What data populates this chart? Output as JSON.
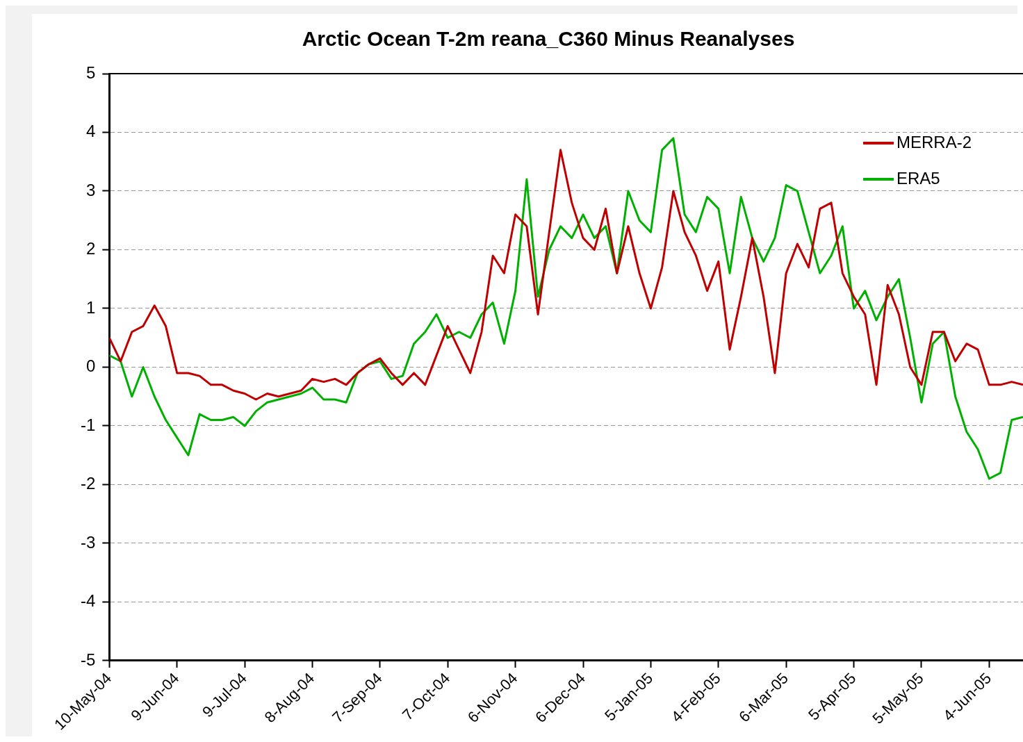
{
  "chart_data": {
    "type": "line",
    "title": "Arctic Ocean T-2m reana_C360 Minus Reanalyses",
    "x": [
      "2004-05-10",
      "2004-05-15",
      "2004-05-20",
      "2004-05-25",
      "2004-05-30",
      "2004-06-04",
      "2004-06-09",
      "2004-06-14",
      "2004-06-19",
      "2004-06-24",
      "2004-06-29",
      "2004-07-04",
      "2004-07-09",
      "2004-07-14",
      "2004-07-19",
      "2004-07-24",
      "2004-07-29",
      "2004-08-03",
      "2004-08-08",
      "2004-08-13",
      "2004-08-18",
      "2004-08-23",
      "2004-08-28",
      "2004-09-02",
      "2004-09-07",
      "2004-09-12",
      "2004-09-17",
      "2004-09-22",
      "2004-09-27",
      "2004-10-02",
      "2004-10-07",
      "2004-10-12",
      "2004-10-17",
      "2004-10-22",
      "2004-10-27",
      "2004-11-01",
      "2004-11-06",
      "2004-11-11",
      "2004-11-16",
      "2004-11-21",
      "2004-11-26",
      "2004-12-01",
      "2004-12-06",
      "2004-12-11",
      "2004-12-16",
      "2004-12-21",
      "2004-12-26",
      "2004-12-31",
      "2005-01-05",
      "2005-01-10",
      "2005-01-15",
      "2005-01-20",
      "2005-01-25",
      "2005-01-30",
      "2005-02-04",
      "2005-02-09",
      "2005-02-14",
      "2005-02-19",
      "2005-02-24",
      "2005-03-01",
      "2005-03-06",
      "2005-03-11",
      "2005-03-16",
      "2005-03-21",
      "2005-03-26",
      "2005-03-31",
      "2005-04-05",
      "2005-04-10",
      "2005-04-15",
      "2005-04-20",
      "2005-04-25",
      "2005-04-30",
      "2005-05-05",
      "2005-05-10",
      "2005-05-15",
      "2005-05-20",
      "2005-05-25",
      "2005-05-30",
      "2005-06-04",
      "2005-06-09",
      "2005-06-14",
      "2005-06-19"
    ],
    "series": [
      {
        "name": "MERRA-2",
        "color": "#c00000",
        "values": [
          0.5,
          0.1,
          0.6,
          0.7,
          1.05,
          0.7,
          -0.1,
          -0.1,
          -0.15,
          -0.3,
          -0.3,
          -0.4,
          -0.45,
          -0.55,
          -0.45,
          -0.5,
          -0.45,
          -0.4,
          -0.2,
          -0.25,
          -0.2,
          -0.3,
          -0.1,
          0.05,
          0.15,
          -0.1,
          -0.3,
          -0.1,
          -0.3,
          0.2,
          0.7,
          0.3,
          -0.1,
          0.6,
          1.9,
          1.6,
          2.6,
          2.4,
          0.9,
          2.3,
          3.7,
          2.8,
          2.2,
          2.0,
          2.7,
          1.6,
          2.4,
          1.6,
          1.0,
          1.7,
          3.0,
          2.3,
          1.9,
          1.3,
          1.8,
          0.3,
          1.2,
          2.2,
          1.2,
          -0.1,
          1.6,
          2.1,
          1.7,
          2.7,
          2.8,
          1.6,
          1.2,
          0.9,
          -0.3,
          1.4,
          0.9,
          0.0,
          -0.3,
          0.6,
          0.6,
          0.1,
          0.4,
          0.3,
          -0.3,
          -0.3,
          -0.25,
          -0.3
        ]
      },
      {
        "name": "ERA5",
        "color": "#00b000",
        "values": [
          0.2,
          0.1,
          -0.5,
          0.0,
          -0.5,
          -0.9,
          -1.2,
          -1.5,
          -0.8,
          -0.9,
          -0.9,
          -0.85,
          -1.0,
          -0.75,
          -0.6,
          -0.55,
          -0.5,
          -0.45,
          -0.35,
          -0.55,
          -0.55,
          -0.6,
          -0.1,
          0.05,
          0.1,
          -0.2,
          -0.15,
          0.4,
          0.6,
          0.9,
          0.5,
          0.6,
          0.5,
          0.9,
          1.1,
          0.4,
          1.3,
          3.2,
          1.2,
          2.0,
          2.4,
          2.2,
          2.6,
          2.2,
          2.4,
          1.6,
          3.0,
          2.5,
          2.3,
          3.7,
          3.9,
          2.6,
          2.3,
          2.9,
          2.7,
          1.6,
          2.9,
          2.2,
          1.8,
          2.2,
          3.1,
          3.0,
          2.3,
          1.6,
          1.9,
          2.4,
          1.0,
          1.3,
          0.8,
          1.2,
          1.5,
          0.5,
          -0.6,
          0.4,
          0.6,
          -0.5,
          -1.1,
          -1.4,
          -1.9,
          -1.8,
          -0.9,
          -0.85
        ]
      }
    ],
    "xlim": [
      "2004-05-10",
      "2005-06-19"
    ],
    "xticks": [
      {
        "value": "2004-05-10",
        "label": "10-May-04"
      },
      {
        "value": "2004-06-09",
        "label": "9-Jun-04"
      },
      {
        "value": "2004-07-09",
        "label": "9-Jul-04"
      },
      {
        "value": "2004-08-08",
        "label": "8-Aug-04"
      },
      {
        "value": "2004-09-07",
        "label": "7-Sep-04"
      },
      {
        "value": "2004-10-07",
        "label": "7-Oct-04"
      },
      {
        "value": "2004-11-06",
        "label": "6-Nov-04"
      },
      {
        "value": "2004-12-06",
        "label": "6-Dec-04"
      },
      {
        "value": "2005-01-05",
        "label": "5-Jan-05"
      },
      {
        "value": "2005-02-04",
        "label": "4-Feb-05"
      },
      {
        "value": "2005-03-06",
        "label": "6-Mar-05"
      },
      {
        "value": "2005-04-05",
        "label": "5-Apr-05"
      },
      {
        "value": "2005-05-05",
        "label": "5-May-05"
      },
      {
        "value": "2005-06-04",
        "label": "4-Jun-05"
      }
    ],
    "ylim": [
      -5,
      5
    ],
    "yticks": [
      -5,
      -4,
      -3,
      -2,
      -1,
      0,
      1,
      2,
      3,
      4,
      5
    ],
    "grid": "y",
    "legend": "top right",
    "marker": "none",
    "line_style": "solid"
  }
}
